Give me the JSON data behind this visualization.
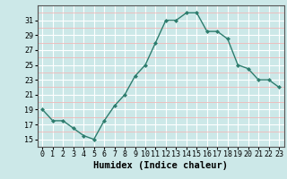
{
  "x": [
    0,
    1,
    2,
    3,
    4,
    5,
    6,
    7,
    8,
    9,
    10,
    11,
    12,
    13,
    14,
    15,
    16,
    17,
    18,
    19,
    20,
    21,
    22,
    23
  ],
  "y": [
    19,
    17.5,
    17.5,
    16.5,
    15.5,
    15,
    17.5,
    19.5,
    21,
    23.5,
    25,
    28,
    31,
    31,
    32,
    32,
    29.5,
    29.5,
    28.5,
    25,
    24.5,
    23,
    23,
    22
  ],
  "line_color": "#2e7d6e",
  "marker": "D",
  "marker_size": 2,
  "bg_color": "#cce8e8",
  "grid_color": "#ffffff",
  "grid_minor_color": "#f0b8b8",
  "xlabel": "Humidex (Indice chaleur)",
  "xlim": [
    -0.5,
    23.5
  ],
  "ylim": [
    14,
    33
  ],
  "yticks": [
    15,
    17,
    19,
    21,
    23,
    25,
    27,
    29,
    31
  ],
  "xtick_labels": [
    "0",
    "1",
    "2",
    "3",
    "4",
    "5",
    "6",
    "7",
    "8",
    "9",
    "10",
    "11",
    "12",
    "13",
    "14",
    "15",
    "16",
    "17",
    "18",
    "19",
    "20",
    "21",
    "22",
    "23"
  ],
  "xlabel_fontsize": 7.5,
  "tick_fontsize": 6
}
